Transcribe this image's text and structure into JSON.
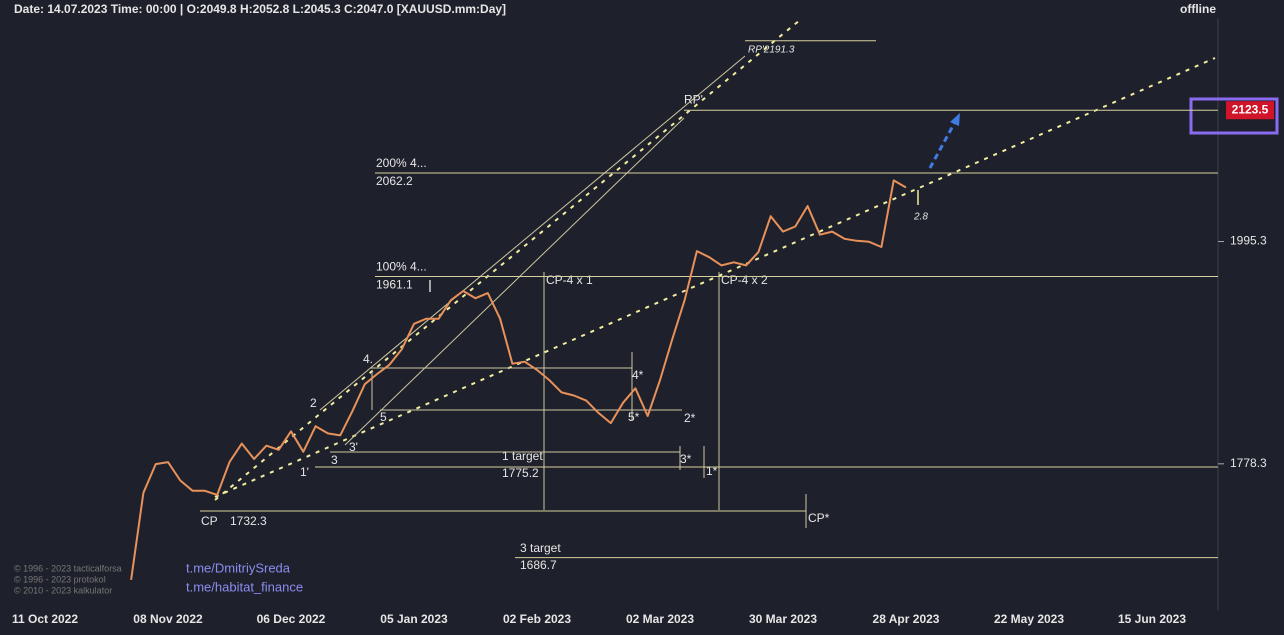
{
  "header": {
    "info": "Date: 14.07.2023 Time: 00:00 | O:2049.8 H:2052.8 L:2045.3 C:2047.0 [XAUUSD.mm:Day]",
    "status": "offline"
  },
  "chart_data": {
    "type": "line",
    "color": "#e8915a",
    "categories": [
      "11 Oct 2022",
      null,
      null,
      null,
      null,
      null,
      null,
      null,
      null,
      null,
      "08 Nov 2022",
      null,
      null,
      null,
      null,
      null,
      null,
      null,
      null,
      null,
      "06 Dec 2022",
      null,
      null,
      null,
      null,
      null,
      null,
      null,
      null,
      null,
      "05 Jan 2023",
      null,
      null,
      null,
      null,
      null,
      null,
      null,
      null,
      null,
      "02 Feb 2023",
      null,
      null,
      null,
      null,
      null,
      null,
      null,
      null,
      null,
      "02 Mar 2023",
      null,
      null,
      null,
      null,
      null,
      null,
      null,
      null,
      null,
      "30 Mar 2023",
      null,
      null,
      null,
      null,
      null,
      null,
      null,
      null,
      null,
      "28 Apr 2023",
      null,
      null,
      null,
      null,
      null,
      null,
      null,
      null,
      null,
      "22 May 2023",
      null,
      null,
      null,
      null,
      null,
      null,
      null,
      null,
      null,
      "15 Jun 2023",
      null,
      null,
      null,
      null,
      null
    ],
    "values": [
      null,
      null,
      null,
      null,
      null,
      null,
      null,
      1665,
      1750,
      1778,
      1780,
      1762,
      1752,
      1752,
      1748,
      1780,
      1798,
      1783,
      1796,
      1792,
      1810,
      1790,
      1815,
      1808,
      1806,
      1830,
      1856,
      1866,
      1875,
      1890,
      1915,
      1920,
      1920,
      1938,
      1947,
      1940,
      1945,
      1920,
      1876,
      1878,
      1870,
      1860,
      1848,
      1845,
      1840,
      1828,
      1818,
      1838,
      1852,
      1825,
      1860,
      1900,
      1938,
      1986,
      1980,
      1972,
      1975,
      1972,
      1985,
      2020,
      2005,
      2010,
      2030,
      2002,
      2005,
      1998,
      1996,
      1995,
      1990,
      2055,
      2048,
      null,
      null,
      null,
      null,
      null,
      null,
      null,
      null,
      null,
      null,
      null,
      null,
      null,
      null,
      null,
      null,
      null,
      null,
      null,
      null,
      null,
      null,
      null,
      null,
      null
    ],
    "ylim": [
      1635.6,
      2213.5
    ],
    "yticks": [
      1778.3,
      1995.3
    ],
    "last_price": 2123.5,
    "levels": [
      {
        "label": "RP'2191.3",
        "value": 2191.3
      },
      {
        "label": "RP'",
        "value": 2123.5
      },
      {
        "label": "200%  4...",
        "value": 2062.2
      },
      {
        "label": "100%  4...",
        "value": 1961.1
      },
      {
        "label": "1 target",
        "value": 1775.2
      },
      {
        "label": "CP",
        "value": 1732.3
      },
      {
        "label": "3 target",
        "value": 1686.7
      }
    ],
    "marks": [
      "CP-4 x 1",
      "CP-4 x 2",
      "CP*",
      "4.",
      "2",
      "3'",
      "3",
      "1'",
      "5",
      "4*",
      "5*",
      "2*",
      "3*",
      "1*",
      "2.8"
    ],
    "watermark": [
      "t.me/DmitriySreda",
      "t.me/habitat_finance"
    ],
    "copyright": [
      "© 1996 - 2023 tacticalforsa",
      "© 1996 - 2023 protokol",
      "© 2010 - 2023 kalkulator"
    ]
  }
}
